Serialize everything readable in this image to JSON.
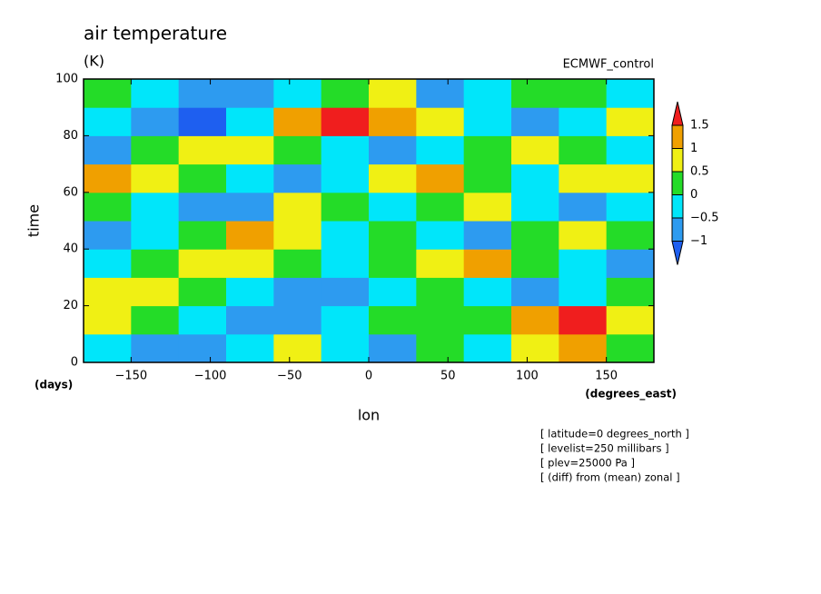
{
  "chart_data": {
    "type": "heatmap",
    "title": "air temperature",
    "subtitle": "(K)",
    "source": "ECMWF_control",
    "y_label": "time",
    "y_unit": "(days)",
    "x_label": "lon",
    "x_unit": "(degrees_east)",
    "notes": [
      "[ latitude=0 degrees_north ]",
      "[ levelist=250 millibars ]",
      "[ plev=25000 Pa ]",
      "[ (diff) from (mean) zonal ]"
    ],
    "xlim": [
      -180,
      180
    ],
    "ylim": [
      0,
      100
    ],
    "xticks": [
      {
        "value": -150,
        "label": "−150"
      },
      {
        "value": -100,
        "label": "−100"
      },
      {
        "value": -50,
        "label": "−50"
      },
      0,
      50,
      100,
      150
    ],
    "yticks": [
      0,
      20,
      40,
      60,
      80,
      100
    ],
    "x": [
      -165,
      -135,
      -105,
      -75,
      -45,
      -15,
      15,
      45,
      75,
      105,
      135,
      165
    ],
    "y": [
      5,
      15,
      25,
      35,
      45,
      55,
      65,
      75,
      85,
      95
    ],
    "z": [
      [
        -0.5,
        -0.8,
        -0.6,
        -0.3,
        0.6,
        -0.2,
        -0.9,
        0.3,
        -0.4,
        0.5,
        1.2,
        0.4
      ],
      [
        0.7,
        0.2,
        -0.3,
        -0.7,
        -0.9,
        -0.5,
        0.1,
        0.4,
        0.3,
        1.0,
        1.6,
        0.8
      ],
      [
        0.9,
        0.6,
        0.3,
        -0.2,
        -0.6,
        -0.8,
        -0.4,
        0.2,
        -0.3,
        -0.6,
        -0.2,
        0.4
      ],
      [
        -0.4,
        0.3,
        0.8,
        0.5,
        0.1,
        -0.3,
        0.2,
        0.6,
        1.1,
        0.4,
        -0.2,
        -0.7
      ],
      [
        -0.8,
        -0.5,
        0.4,
        1.1,
        0.6,
        -0.2,
        0.3,
        -0.4,
        -0.7,
        0.2,
        0.6,
        0.3
      ],
      [
        0.4,
        -0.3,
        -0.8,
        -0.6,
        0.5,
        0.2,
        -0.5,
        0.1,
        0.5,
        -0.3,
        -0.8,
        -0.5
      ],
      [
        1.4,
        0.7,
        0.2,
        -0.5,
        -0.9,
        -0.4,
        0.6,
        1.2,
        0.3,
        -0.2,
        0.5,
        0.6
      ],
      [
        -0.6,
        0.3,
        0.6,
        0.8,
        0.2,
        -0.3,
        -0.7,
        -0.4,
        0.2,
        0.7,
        0.4,
        -0.3
      ],
      [
        -0.3,
        -0.8,
        -1.1,
        -0.5,
        1.3,
        1.6,
        1.2,
        0.5,
        -0.2,
        -0.6,
        -0.3,
        0.9
      ],
      [
        0.2,
        -0.3,
        -0.6,
        -0.9,
        -0.4,
        0.3,
        0.5,
        -0.7,
        -0.5,
        0.1,
        0.4,
        -0.2
      ]
    ],
    "levels": [
      {
        "value": -1,
        "label": "−1"
      },
      {
        "value": -0.5,
        "label": "−0.5"
      },
      0,
      0.5,
      1,
      1.5
    ],
    "colors": [
      "#1e5ff0",
      "#2d9bf0",
      "#00e6fa",
      "#24dc28",
      "#f0f014",
      "#f0a000",
      "#f01e1e"
    ]
  }
}
